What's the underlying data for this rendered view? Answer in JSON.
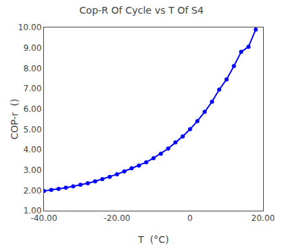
{
  "chart_data": {
    "type": "line",
    "title": "Cop-R Of Cycle vs T Of S4",
    "x_label": "T  (°C)",
    "y_label": "COP-r  ()",
    "x": [
      -40,
      -38,
      -36,
      -34,
      -32,
      -30,
      -28,
      -26,
      -24,
      -22,
      -20,
      -18,
      -16,
      -14,
      -12,
      -10,
      -8,
      -6,
      -4,
      -2,
      0,
      2,
      4,
      6,
      8,
      10,
      12,
      14,
      16,
      18
    ],
    "series": [
      {
        "color": "#0000ff",
        "marker": "circle",
        "values": [
          1.97,
          2.02,
          2.07,
          2.13,
          2.2,
          2.27,
          2.35,
          2.44,
          2.55,
          2.66,
          2.79,
          2.93,
          3.08,
          3.22,
          3.38,
          3.58,
          3.8,
          4.05,
          4.35,
          4.65,
          5.0,
          5.4,
          5.85,
          6.35,
          6.95,
          7.45,
          8.1,
          8.8,
          9.05,
          9.9
        ]
      }
    ],
    "xlim": [
      -40,
      20
    ],
    "ylim": [
      1.0,
      10.0
    ],
    "xticks": [
      {
        "value": -40,
        "label": "-40.00"
      },
      {
        "value": -20,
        "label": "-20.00"
      },
      0,
      {
        "value": 20,
        "label": "20.00"
      }
    ],
    "yticks": [
      {
        "value": 1.0,
        "label": "1.00"
      },
      {
        "value": 2.0,
        "label": "2.00"
      },
      {
        "value": 3.0,
        "label": "3.00"
      },
      {
        "value": 4.0,
        "label": "4.00"
      },
      {
        "value": 5.0,
        "label": "5.00"
      },
      {
        "value": 6.0,
        "label": "6.00"
      },
      {
        "value": 7.0,
        "label": "7.00"
      },
      {
        "value": 8.0,
        "label": "8.00"
      },
      {
        "value": 9.0,
        "label": "9.00"
      },
      {
        "value": 10.0,
        "label": "10.00"
      }
    ],
    "grid": false
  }
}
